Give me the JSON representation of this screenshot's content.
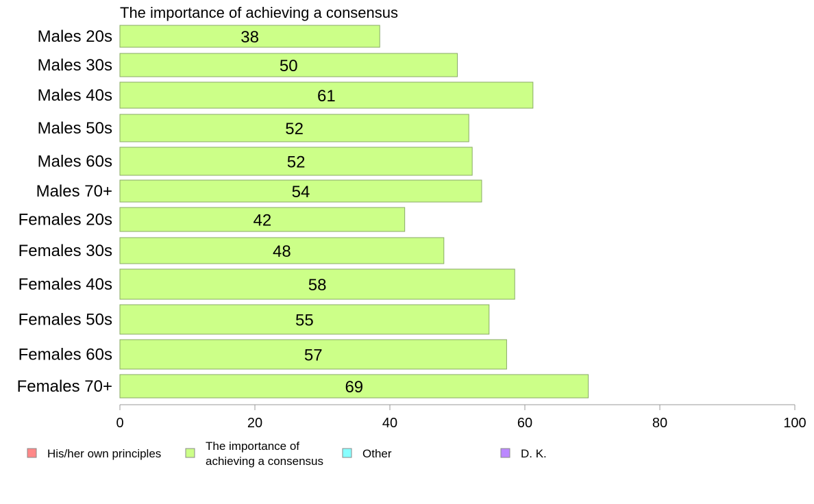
{
  "chart_data": {
    "type": "bar",
    "orientation": "horizontal",
    "title": "The importance of achieving a consensus",
    "categories": [
      "Males 20s",
      "Males 30s",
      "Males 40s",
      "Males 50s",
      "Males 60s",
      "Males 70+",
      "Females 20s",
      "Females 30s",
      "Females 40s",
      "Females 50s",
      "Females 60s",
      "Females 70+"
    ],
    "values": [
      38.5,
      50,
      61.2,
      51.7,
      52.2,
      53.6,
      42.2,
      48,
      58.5,
      54.7,
      57.3,
      69.4
    ],
    "value_labels": [
      "38",
      "50",
      "61",
      "52",
      "52",
      "54",
      "42",
      "48",
      "58",
      "55",
      "57",
      "69"
    ],
    "xlim": [
      0,
      100
    ],
    "xticks": [
      "0",
      "20",
      "40",
      "60",
      "80",
      "100"
    ],
    "grid": false,
    "bar_color": "#ccff88",
    "bar_stroke": "#88aa66",
    "legend": {
      "placement": "bottom",
      "items": [
        {
          "label": "His/her own principles",
          "color": "#ff8888"
        },
        {
          "label": "The importance of achieving a consensus",
          "lines": [
            "The importance of",
            "achieving a consensus"
          ],
          "color": "#ccff88"
        },
        {
          "label": "Other",
          "color": "#88ffff"
        },
        {
          "label": "D. K.",
          "color": "#bb88ff"
        }
      ]
    }
  }
}
